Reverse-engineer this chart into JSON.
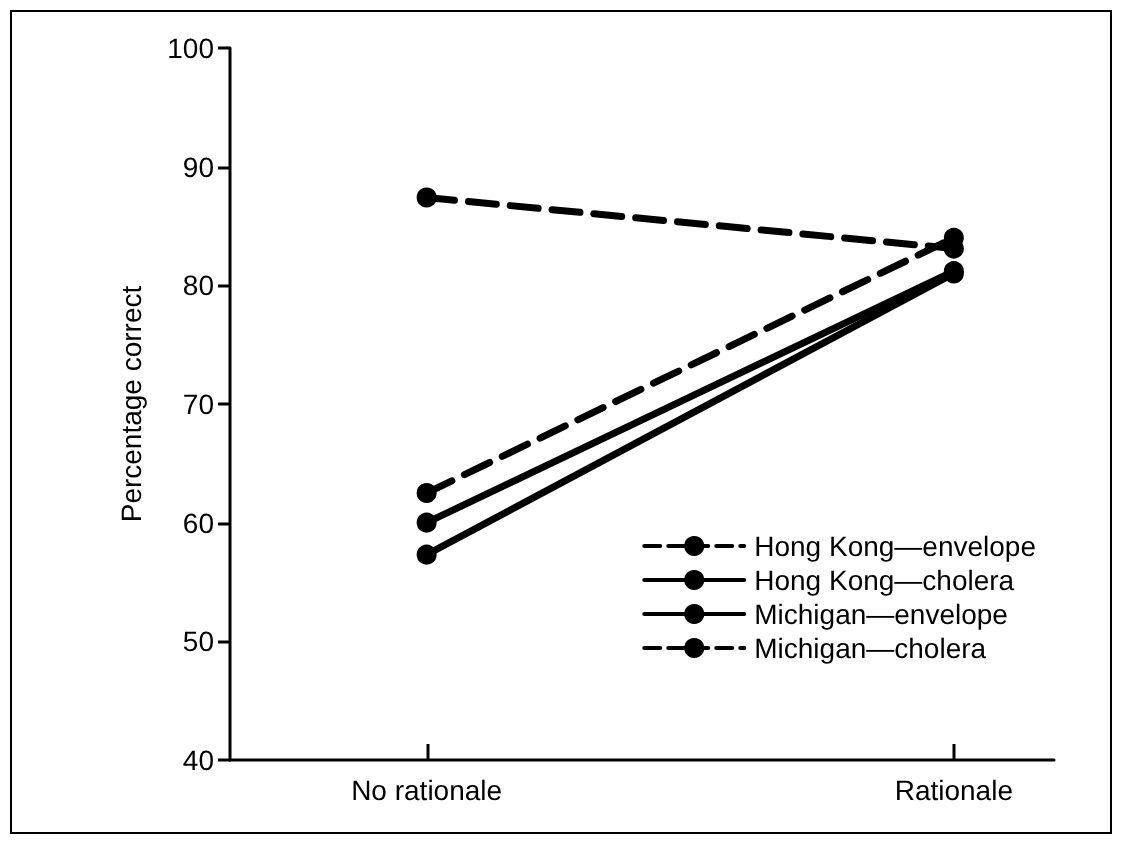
{
  "chart_data": {
    "type": "line",
    "ylabel": "Percentage correct",
    "categories": [
      "No rationale",
      "Rationale"
    ],
    "series": [
      {
        "name": "Hong Kong—envelope",
        "color": "#000000",
        "values": [
          87.4,
          83.1
        ],
        "line_style": "dashed"
      },
      {
        "name": "Hong Kong—cholera",
        "color": "#000000",
        "values": [
          60,
          81.2
        ],
        "line_style": "solid"
      },
      {
        "name": "Michigan—envelope",
        "color": "#000000",
        "values": [
          57.3,
          81
        ],
        "line_style": "solid"
      },
      {
        "name": "Michigan—cholera",
        "color": "#000000",
        "values": [
          62.5,
          84
        ],
        "line_style": "dashed"
      }
    ],
    "ylim": [
      40,
      100
    ],
    "yticks": [
      40,
      50,
      60,
      70,
      80,
      90,
      100
    ],
    "grid": false,
    "legend": "bottom right",
    "marker": "circle"
  }
}
